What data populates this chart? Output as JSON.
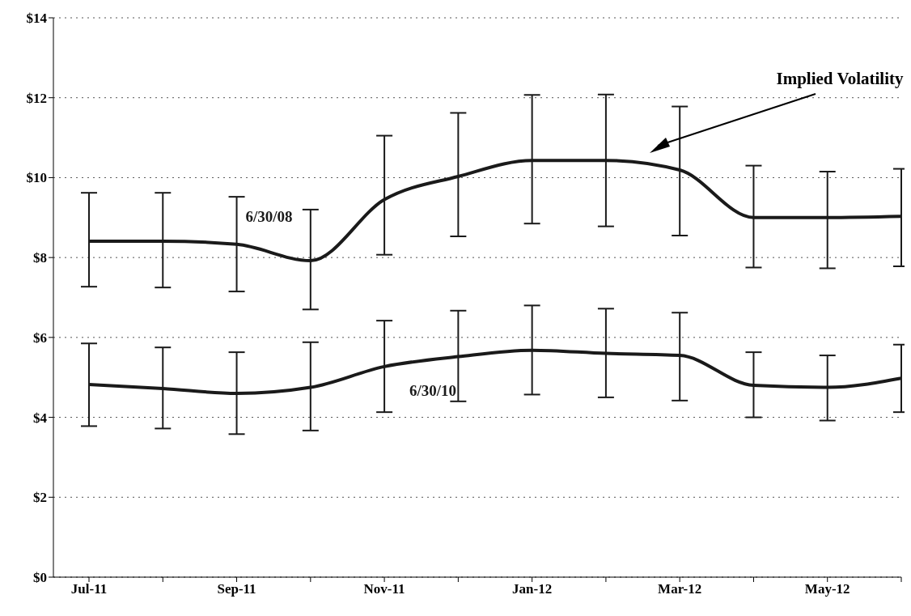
{
  "chart_data": {
    "type": "line",
    "categories": [
      "Jul-11",
      null,
      "Sep-11",
      null,
      "Nov-11",
      null,
      "Jan-12",
      null,
      "Mar-12",
      null,
      "May-12",
      null
    ],
    "series": [
      {
        "name": "6/30/08",
        "color": "#1a1a1a",
        "values": [
          8.41,
          8.41,
          8.33,
          7.92,
          9.45,
          10.03,
          10.43,
          10.43,
          10.19,
          9.0,
          9.0,
          9.03
        ],
        "errors": [
          [
            7.27,
            9.62
          ],
          [
            7.25,
            9.62
          ],
          [
            7.15,
            9.52
          ],
          [
            6.7,
            9.2
          ],
          [
            8.07,
            11.05
          ],
          [
            8.53,
            11.62
          ],
          [
            8.85,
            12.07
          ],
          [
            8.78,
            12.08
          ],
          [
            8.55,
            11.78
          ],
          [
            7.75,
            10.3
          ],
          [
            7.73,
            10.15
          ],
          [
            7.78,
            10.22
          ]
        ]
      },
      {
        "name": "6/30/10",
        "color": "#1a1a1a",
        "values": [
          4.82,
          4.72,
          4.6,
          4.75,
          5.27,
          5.52,
          5.68,
          5.6,
          5.55,
          4.8,
          4.75,
          4.98
        ],
        "errors": [
          [
            3.78,
            5.85
          ],
          [
            3.72,
            5.75
          ],
          [
            3.58,
            5.63
          ],
          [
            3.67,
            5.88
          ],
          [
            4.13,
            6.42
          ],
          [
            4.4,
            6.67
          ],
          [
            4.57,
            6.8
          ],
          [
            4.5,
            6.72
          ],
          [
            4.42,
            6.62
          ],
          [
            4.0,
            5.63
          ],
          [
            3.92,
            5.55
          ],
          [
            4.13,
            5.82
          ]
        ]
      }
    ],
    "ylim": [
      0,
      14
    ],
    "yticks": [
      {
        "value": 0,
        "label": "$0"
      },
      {
        "value": 2,
        "label": "$2"
      },
      {
        "value": 4,
        "label": "$4"
      },
      {
        "value": 6,
        "label": "$6"
      },
      {
        "value": 8,
        "label": "$8"
      },
      {
        "value": 10,
        "label": "$10"
      },
      {
        "value": 12,
        "label": "$12"
      },
      {
        "value": 14,
        "label": "$14"
      }
    ],
    "grid": "y",
    "legend": false,
    "marker": "none",
    "line_style": "solid",
    "annotations": [
      "Implied Volatility"
    ]
  }
}
